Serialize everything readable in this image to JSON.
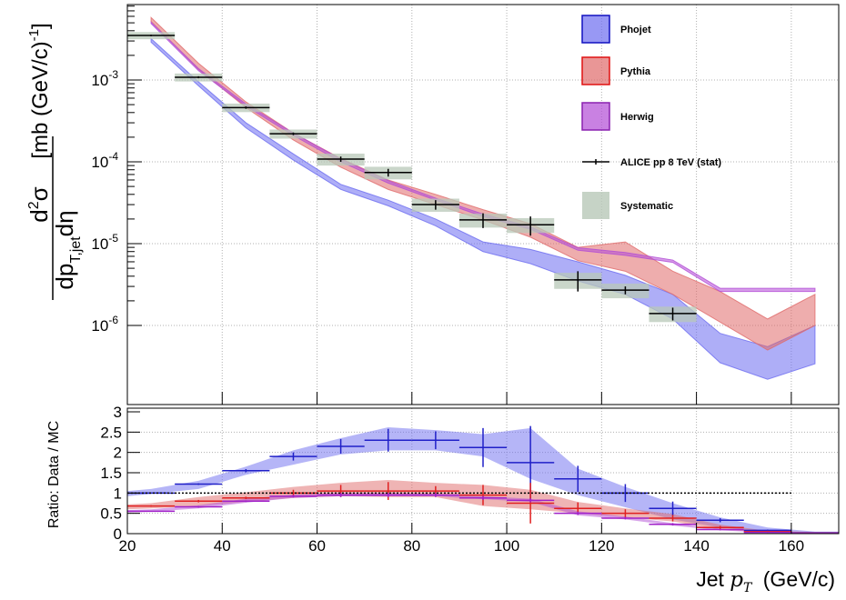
{
  "colors": {
    "phojet": "#6c6cf0",
    "pythia": "#e06a6a",
    "herwig": "#b24bd6",
    "data": "#000000",
    "systematic": "#b8c8b8",
    "ratio_phojet": "#2020c8",
    "ratio_pythia": "#e02020",
    "ratio_herwig": "#a020c8"
  },
  "chart_data": [
    {
      "type": "line",
      "panel": "upper",
      "ylabel_parts": {
        "d2": "d",
        "sup2": "2",
        "sigma": "σ",
        "dp": "dp",
        "sub": "T,jet",
        "deta": "dη",
        "units_a": "[mb (GeV/c)",
        "units_exp": "-1",
        "units_b": "]"
      },
      "xlim": [
        20,
        170
      ],
      "ylim": [
        1e-07,
        0.01
      ],
      "yscale": "log",
      "ytick_labels": [
        {
          "value": 0.001,
          "base": "10",
          "exp": "-3"
        },
        {
          "value": 0.0001,
          "base": "10",
          "exp": "-4"
        },
        {
          "value": 1e-05,
          "base": "10",
          "exp": "-5"
        },
        {
          "value": 1e-06,
          "base": "10",
          "exp": "-6"
        }
      ],
      "grid": true,
      "legend_position": "top-right",
      "legend": [
        {
          "label": "Phojet",
          "kind": "band"
        },
        {
          "label": "Pythia",
          "kind": "band"
        },
        {
          "label": "Herwig",
          "kind": "band"
        },
        {
          "label": "ALICE pp 8 TeV (stat)",
          "kind": "marker"
        },
        {
          "label": "Systematic",
          "kind": "box"
        }
      ],
      "data_points": [
        {
          "x": 25,
          "xlow": 20,
          "xhigh": 30,
          "y": 0.0035,
          "err": 8e-05,
          "syst": 0.00035
        },
        {
          "x": 35,
          "xlow": 30,
          "xhigh": 40,
          "y": 0.00108,
          "err": 3e-05,
          "syst": 0.00012
        },
        {
          "x": 45,
          "xlow": 40,
          "xhigh": 50,
          "y": 0.00046,
          "err": 1.5e-05,
          "syst": 5.5e-05
        },
        {
          "x": 55,
          "xlow": 50,
          "xhigh": 60,
          "y": 0.00022,
          "err": 8e-06,
          "syst": 2.8e-05
        },
        {
          "x": 65,
          "xlow": 60,
          "xhigh": 70,
          "y": 0.000108,
          "err": 8e-06,
          "syst": 1.8e-05
        },
        {
          "x": 75,
          "xlow": 70,
          "xhigh": 80,
          "y": 7.4e-05,
          "err": 8e-06,
          "syst": 1.3e-05
        },
        {
          "x": 85,
          "xlow": 80,
          "xhigh": 90,
          "y": 3e-05,
          "err": 4e-06,
          "syst": 5.5e-06
        },
        {
          "x": 95,
          "xlow": 90,
          "xhigh": 100,
          "y": 1.95e-05,
          "err": 4e-06,
          "syst": 3.8e-06
        },
        {
          "x": 105,
          "xlow": 100,
          "xhigh": 110,
          "y": 1.7e-05,
          "err": 4.5e-06,
          "syst": 3.5e-06
        },
        {
          "x": 115,
          "xlow": 110,
          "xhigh": 120,
          "y": 3.6e-06,
          "err": 1e-06,
          "syst": 8e-07
        },
        {
          "x": 125,
          "xlow": 120,
          "xhigh": 130,
          "y": 2.7e-06,
          "err": 3e-07,
          "syst": 5.5e-07
        },
        {
          "x": 135,
          "xlow": 130,
          "xhigh": 140,
          "y": 1.4e-06,
          "err": 2.5e-07,
          "syst": 3e-07
        }
      ],
      "series": [
        {
          "name": "Phojet",
          "x": [
            25,
            35,
            45,
            55,
            65,
            75,
            85,
            95,
            105,
            115,
            125,
            135,
            145,
            155,
            165
          ],
          "low": [
            0.0029,
            0.00085,
            0.00026,
            0.000105,
            4.6e-05,
            2.9e-05,
            1.65e-05,
            8e-06,
            5.7e-06,
            3.5e-06,
            2.4e-06,
            1.2e-06,
            3.5e-07,
            2.2e-07,
            3.4e-07
          ],
          "high": [
            0.0032,
            0.00095,
            0.0003,
            0.000125,
            5.3e-05,
            3.4e-05,
            2e-05,
            1.05e-05,
            8.5e-06,
            6e-06,
            4.1e-06,
            2.4e-06,
            8e-07,
            5.5e-07,
            1e-06
          ]
        },
        {
          "name": "Pythia",
          "x": [
            25,
            35,
            45,
            55,
            65,
            75,
            85,
            95,
            105,
            115,
            125,
            135,
            145,
            155,
            165
          ],
          "low": [
            0.0052,
            0.00135,
            0.00046,
            0.000185,
            8.6e-05,
            4.6e-05,
            3e-05,
            1.95e-05,
            1.2e-05,
            6.2e-06,
            4.6e-06,
            2.4e-06,
            1.1e-06,
            5e-07,
            1e-06
          ],
          "high": [
            0.0058,
            0.0016,
            0.00054,
            0.000225,
            0.00011,
            6e-05,
            4e-05,
            2.6e-05,
            1.75e-05,
            9e-06,
            1.05e-05,
            4.6e-06,
            2.6e-06,
            1.2e-06,
            2.4e-06
          ]
        },
        {
          "name": "Herwig",
          "x": [
            25,
            35,
            45,
            55,
            65,
            75,
            85,
            95,
            105,
            115,
            125,
            135,
            145,
            155,
            165
          ],
          "low": [
            0.0049,
            0.0013,
            0.00048,
            0.00021,
            0.0001,
            5.5e-05,
            3.4e-05,
            2.15e-05,
            1.5e-05,
            8.3e-06,
            7.2e-06,
            5.9e-06,
            2.6e-06,
            2.6e-06,
            2.6e-06
          ],
          "high": [
            0.0051,
            0.00138,
            0.00051,
            0.000225,
            0.000108,
            5.9e-05,
            3.6e-05,
            2.3e-05,
            1.6e-05,
            8.9e-06,
            7.8e-06,
            6.3e-06,
            2.85e-06,
            2.85e-06,
            2.85e-06
          ]
        }
      ]
    },
    {
      "type": "line",
      "panel": "lower",
      "xlabel": "Jet",
      "xlabel_var": "p",
      "xlabel_sub": "T",
      "xlabel_units": "(GeV/c)",
      "ylabel": "Ratio: Data / MC",
      "xlim": [
        20,
        170
      ],
      "ylim": [
        0,
        3
      ],
      "xticks": [
        20,
        40,
        60,
        80,
        100,
        120,
        140,
        160
      ],
      "xtick_labels": [
        "20",
        "40",
        "60",
        "80",
        "100",
        "120",
        "140",
        "160"
      ],
      "yticks": [
        0,
        0.5,
        1,
        1.5,
        2,
        2.5,
        3
      ],
      "ytick_labels": [
        "0",
        "0.5",
        "1",
        "1.5",
        "2",
        "2.5",
        "3"
      ],
      "reference_line": 1,
      "grid": true,
      "series": [
        {
          "name": "Phojet",
          "band_x": [
            20,
            25,
            35,
            45,
            55,
            65,
            75,
            85,
            95,
            105,
            115,
            125,
            135,
            145,
            155,
            165,
            170
          ],
          "band_low": [
            0.92,
            0.98,
            1.1,
            1.45,
            1.7,
            1.95,
            2.05,
            2.05,
            1.9,
            1.35,
            0.95,
            0.65,
            0.35,
            0.15,
            0.05,
            0.02,
            0.02
          ],
          "band_high": [
            1.05,
            1.1,
            1.3,
            1.65,
            2.05,
            2.35,
            2.62,
            2.55,
            2.45,
            2.6,
            1.6,
            1.15,
            0.75,
            0.4,
            0.15,
            0.05,
            0.05
          ],
          "points": [
            {
              "x": 25,
              "y": 1.0,
              "err": 0.0
            },
            {
              "x": 35,
              "y": 1.22,
              "err": 0.02
            },
            {
              "x": 45,
              "y": 1.55,
              "err": 0.04
            },
            {
              "x": 55,
              "y": 1.9,
              "err": 0.1
            },
            {
              "x": 65,
              "y": 2.15,
              "err": 0.18
            },
            {
              "x": 75,
              "y": 2.3,
              "err": 0.28
            },
            {
              "x": 85,
              "y": 2.3,
              "err": 0.22
            },
            {
              "x": 95,
              "y": 2.12,
              "err": 0.48
            },
            {
              "x": 105,
              "y": 1.75,
              "err": 0.9
            },
            {
              "x": 115,
              "y": 1.35,
              "err": 0.32
            },
            {
              "x": 125,
              "y": 1.0,
              "err": 0.22
            },
            {
              "x": 135,
              "y": 0.62,
              "err": 0.17
            },
            {
              "x": 145,
              "y": 0.33,
              "err": 0.05
            },
            {
              "x": 155,
              "y": 0.08,
              "err": 0.02
            },
            {
              "x": 165,
              "y": 0.02,
              "err": 0.0
            }
          ]
        },
        {
          "name": "Pythia",
          "band_x": [
            20,
            25,
            35,
            45,
            55,
            65,
            75,
            85,
            95,
            105,
            115,
            125,
            135,
            145,
            155,
            165,
            170
          ],
          "band_low": [
            0.6,
            0.62,
            0.68,
            0.78,
            0.88,
            0.92,
            0.9,
            0.9,
            0.68,
            0.6,
            0.5,
            0.4,
            0.3,
            0.1,
            0.03,
            0.0,
            0.0
          ],
          "band_high": [
            0.72,
            0.75,
            0.9,
            1.02,
            1.15,
            1.25,
            1.32,
            1.25,
            1.2,
            1.08,
            0.78,
            0.62,
            0.48,
            0.22,
            0.07,
            0.04,
            0.04
          ],
          "points": [
            {
              "x": 25,
              "y": 0.68,
              "err": 0.02
            },
            {
              "x": 35,
              "y": 0.8,
              "err": 0.03
            },
            {
              "x": 45,
              "y": 0.88,
              "err": 0.03
            },
            {
              "x": 55,
              "y": 1.0,
              "err": 0.08
            },
            {
              "x": 65,
              "y": 1.05,
              "err": 0.15
            },
            {
              "x": 75,
              "y": 1.05,
              "err": 0.22
            },
            {
              "x": 85,
              "y": 1.05,
              "err": 0.12
            },
            {
              "x": 95,
              "y": 0.95,
              "err": 0.25
            },
            {
              "x": 105,
              "y": 0.75,
              "err": 0.5
            },
            {
              "x": 115,
              "y": 0.62,
              "err": 0.15
            },
            {
              "x": 125,
              "y": 0.5,
              "err": 0.1
            },
            {
              "x": 135,
              "y": 0.38,
              "err": 0.08
            },
            {
              "x": 145,
              "y": 0.15,
              "err": 0.04
            },
            {
              "x": 155,
              "y": 0.05,
              "err": 0.02
            },
            {
              "x": 165,
              "y": 0.01,
              "err": 0.0
            }
          ]
        },
        {
          "name": "Herwig",
          "band_x": [
            20,
            25,
            35,
            45,
            55,
            65,
            75,
            85,
            95,
            105,
            115,
            125,
            135,
            145,
            155,
            165,
            170
          ],
          "band_low": [
            0.52,
            0.54,
            0.62,
            0.76,
            0.88,
            0.92,
            0.92,
            0.92,
            0.85,
            0.78,
            0.45,
            0.35,
            0.2,
            0.08,
            0.02,
            0.0,
            0.0
          ],
          "band_high": [
            0.58,
            0.6,
            0.7,
            0.86,
            0.96,
            1.0,
            1.0,
            0.98,
            0.92,
            0.86,
            0.55,
            0.42,
            0.26,
            0.12,
            0.05,
            0.02,
            0.02
          ],
          "points": [
            {
              "x": 25,
              "y": 0.55,
              "err": 0.01
            },
            {
              "x": 35,
              "y": 0.66,
              "err": 0.02
            },
            {
              "x": 45,
              "y": 0.8,
              "err": 0.02
            },
            {
              "x": 55,
              "y": 0.92,
              "err": 0.03
            },
            {
              "x": 65,
              "y": 0.95,
              "err": 0.05
            },
            {
              "x": 75,
              "y": 0.95,
              "err": 0.05
            },
            {
              "x": 85,
              "y": 0.95,
              "err": 0.05
            },
            {
              "x": 95,
              "y": 0.88,
              "err": 0.05
            },
            {
              "x": 105,
              "y": 0.82,
              "err": 0.05
            },
            {
              "x": 115,
              "y": 0.5,
              "err": 0.04
            },
            {
              "x": 125,
              "y": 0.38,
              "err": 0.03
            },
            {
              "x": 135,
              "y": 0.23,
              "err": 0.03
            },
            {
              "x": 145,
              "y": 0.1,
              "err": 0.02
            },
            {
              "x": 155,
              "y": 0.03,
              "err": 0.01
            },
            {
              "x": 165,
              "y": 0.01,
              "err": 0.0
            }
          ]
        }
      ]
    }
  ]
}
